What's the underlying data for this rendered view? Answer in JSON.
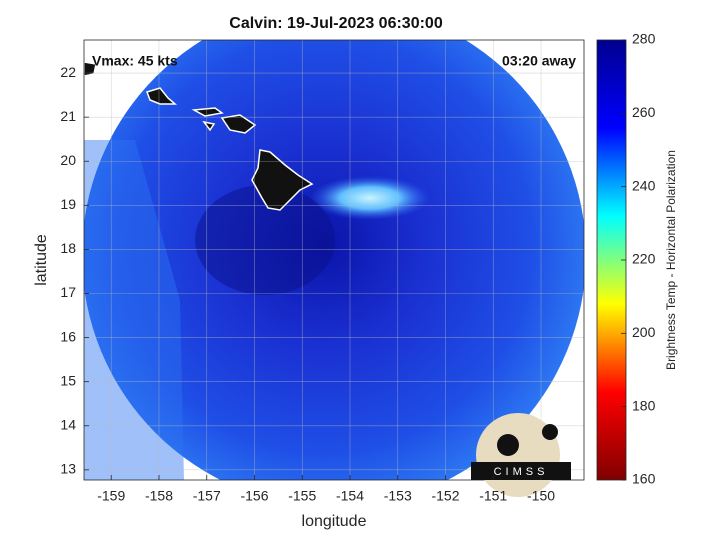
{
  "chart_data": {
    "type": "map",
    "title": "Calvin: 19-Jul-2023 06:30:00",
    "annotations": [
      "Vmax: 45 kts",
      "03:20 away"
    ],
    "xlabel": "longitude",
    "ylabel": "latitude",
    "xlim": [
      -159.57,
      -149.1
    ],
    "xticks": [
      -159,
      -158,
      -157,
      -156,
      -155,
      -154,
      -153,
      -152,
      -151,
      -150
    ],
    "ylim": [
      12.77,
      22.75
    ],
    "yticks": [
      13,
      14,
      15,
      16,
      17,
      18,
      19,
      20,
      21,
      22
    ],
    "grid": true,
    "colorbar": {
      "label": "Brightness Temp - Horizontal Polarization",
      "lim": [
        160,
        280
      ],
      "ticks": [
        160,
        180,
        200,
        220,
        240,
        260,
        280
      ],
      "colors": [
        "#800000",
        "#ff0000",
        "#ffff00",
        "#00ffff",
        "#0000ff",
        "#00008f"
      ]
    },
    "logo": "CIMSS"
  }
}
